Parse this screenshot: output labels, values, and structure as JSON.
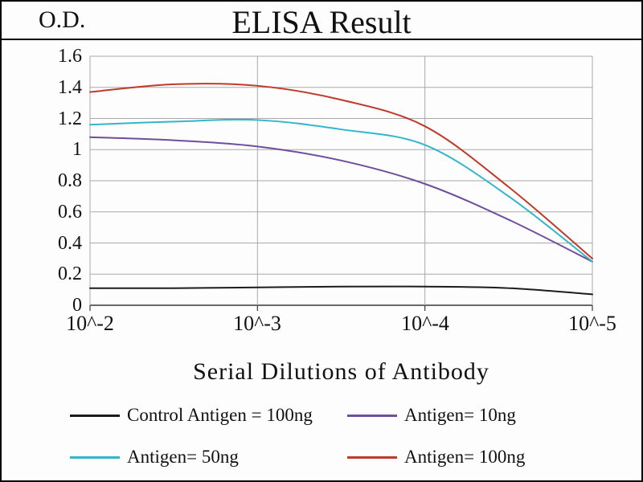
{
  "chart_data": {
    "type": "line",
    "title": "ELISA Result",
    "ylabel": "O.D.",
    "xlabel": "Serial Dilutions  of Antibody",
    "x_scale": "log",
    "x_tick_labels": [
      "10^-2",
      "10^-3",
      "10^-4",
      "10^-5"
    ],
    "y_tick_labels": [
      "0",
      "0.2",
      "0.4",
      "0.6",
      "0.8",
      "1",
      "1.2",
      "1.4",
      "1.6"
    ],
    "ylim": [
      0,
      1.6
    ],
    "grid": true,
    "legend_position": "bottom",
    "x_exponents": [
      -2,
      -2.5,
      -3,
      -3.5,
      -4,
      -4.5,
      -5
    ],
    "series": [
      {
        "name": "Control Antigen = 100ng",
        "color": "#1c1c1c",
        "values": [
          0.11,
          0.11,
          0.115,
          0.12,
          0.12,
          0.11,
          0.07
        ]
      },
      {
        "name": "Antigen= 10ng",
        "color": "#6f4e9c",
        "values": [
          1.08,
          1.06,
          1.02,
          0.93,
          0.78,
          0.55,
          0.28
        ]
      },
      {
        "name": "Antigen= 50ng",
        "color": "#31b7c9",
        "values": [
          1.16,
          1.18,
          1.19,
          1.13,
          1.03,
          0.7,
          0.28
        ]
      },
      {
        "name": "Antigen= 100ng",
        "color": "#bf3a2b",
        "values": [
          1.37,
          1.42,
          1.41,
          1.32,
          1.15,
          0.76,
          0.3
        ]
      }
    ]
  }
}
